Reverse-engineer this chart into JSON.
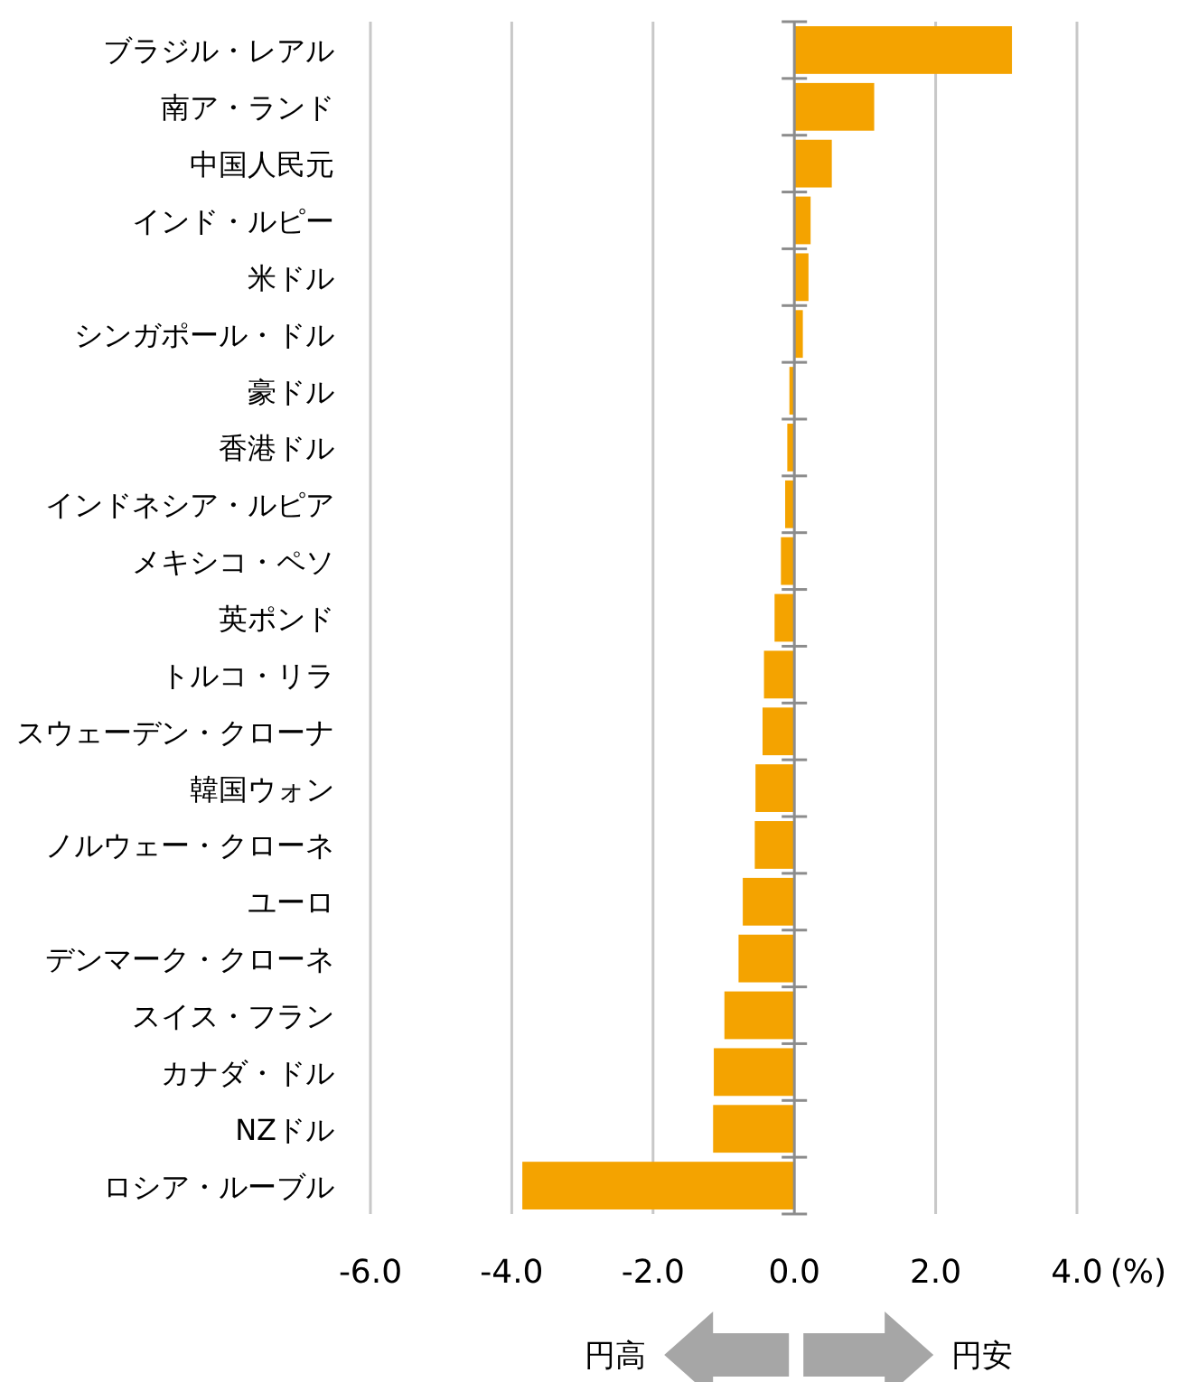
{
  "chart_data": {
    "type": "bar",
    "orientation": "horizontal",
    "categories": [
      "ブラジル・レアル",
      "南ア・ランド",
      "中国人民元",
      "インド・ルピー",
      "米ドル",
      "シンガポール・ドル",
      "豪ドル",
      "香港ドル",
      "インドネシア・ルピア",
      "メキシコ・ペソ",
      "英ポンド",
      "トルコ・リラ",
      "スウェーデン・クローナ",
      "韓国ウォン",
      "ノルウェー・クローネ",
      "ユーロ",
      "デンマーク・クローネ",
      "スイス・フラン",
      "カナダ・ドル",
      "NZドル",
      "ロシア・ルーブル"
    ],
    "values": [
      3.08,
      1.13,
      0.53,
      0.23,
      0.2,
      0.12,
      -0.07,
      -0.1,
      -0.13,
      -0.19,
      -0.28,
      -0.43,
      -0.45,
      -0.55,
      -0.56,
      -0.73,
      -0.79,
      -0.99,
      -1.14,
      -1.15,
      -3.85
    ],
    "color": "#f4a300",
    "xlim": [
      -6,
      4
    ],
    "xticks": [
      {
        "value": -6,
        "label": "-6.0"
      },
      {
        "value": -4,
        "label": "-4.0"
      },
      {
        "value": -2,
        "label": "-2.0"
      },
      {
        "value": 0,
        "label": "0.0"
      },
      {
        "value": 2,
        "label": "2.0"
      },
      {
        "value": 4,
        "label": "4.0"
      }
    ],
    "xlabel": "(%)",
    "grid": "x",
    "annotations": [
      "円高",
      "円安"
    ]
  }
}
